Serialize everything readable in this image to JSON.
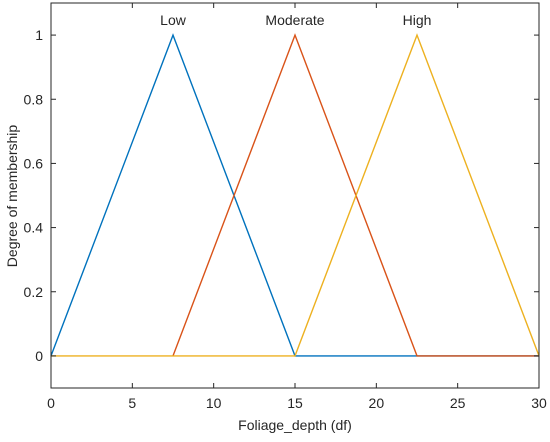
{
  "chart_data": {
    "type": "line",
    "title": "",
    "xlabel": "Foliage_depth (df)",
    "ylabel": "Degree of membership",
    "xlim": [
      0,
      30
    ],
    "ylim": [
      -0.1,
      1.1
    ],
    "xticks": [
      0,
      5,
      10,
      15,
      20,
      25,
      30
    ],
    "yticks": [
      0,
      0.2,
      0.4,
      0.6,
      0.8,
      1
    ],
    "xtick_labels": [
      "0",
      "5",
      "10",
      "15",
      "20",
      "25",
      "30"
    ],
    "ytick_labels": [
      "0",
      "0.2",
      "0.4",
      "0.6",
      "0.8",
      "1"
    ],
    "grid": false,
    "legend": "none",
    "series": [
      {
        "name": "Low",
        "color": "#0072BD",
        "x": [
          0,
          7.5,
          15,
          30
        ],
        "y": [
          0,
          1,
          0,
          0
        ]
      },
      {
        "name": "Moderate",
        "color": "#D95319",
        "x": [
          7.5,
          15,
          22.5,
          30
        ],
        "y": [
          0,
          1,
          0,
          0
        ]
      },
      {
        "name": "High",
        "color": "#EDB120",
        "x": [
          0,
          15,
          22.5,
          30
        ],
        "y": [
          0,
          0,
          1,
          0
        ]
      }
    ],
    "annotations": [
      {
        "text": "Low",
        "x": 7.5,
        "y": 1
      },
      {
        "text": "Moderate",
        "x": 15,
        "y": 1
      },
      {
        "text": "High",
        "x": 22.5,
        "y": 1
      }
    ]
  }
}
